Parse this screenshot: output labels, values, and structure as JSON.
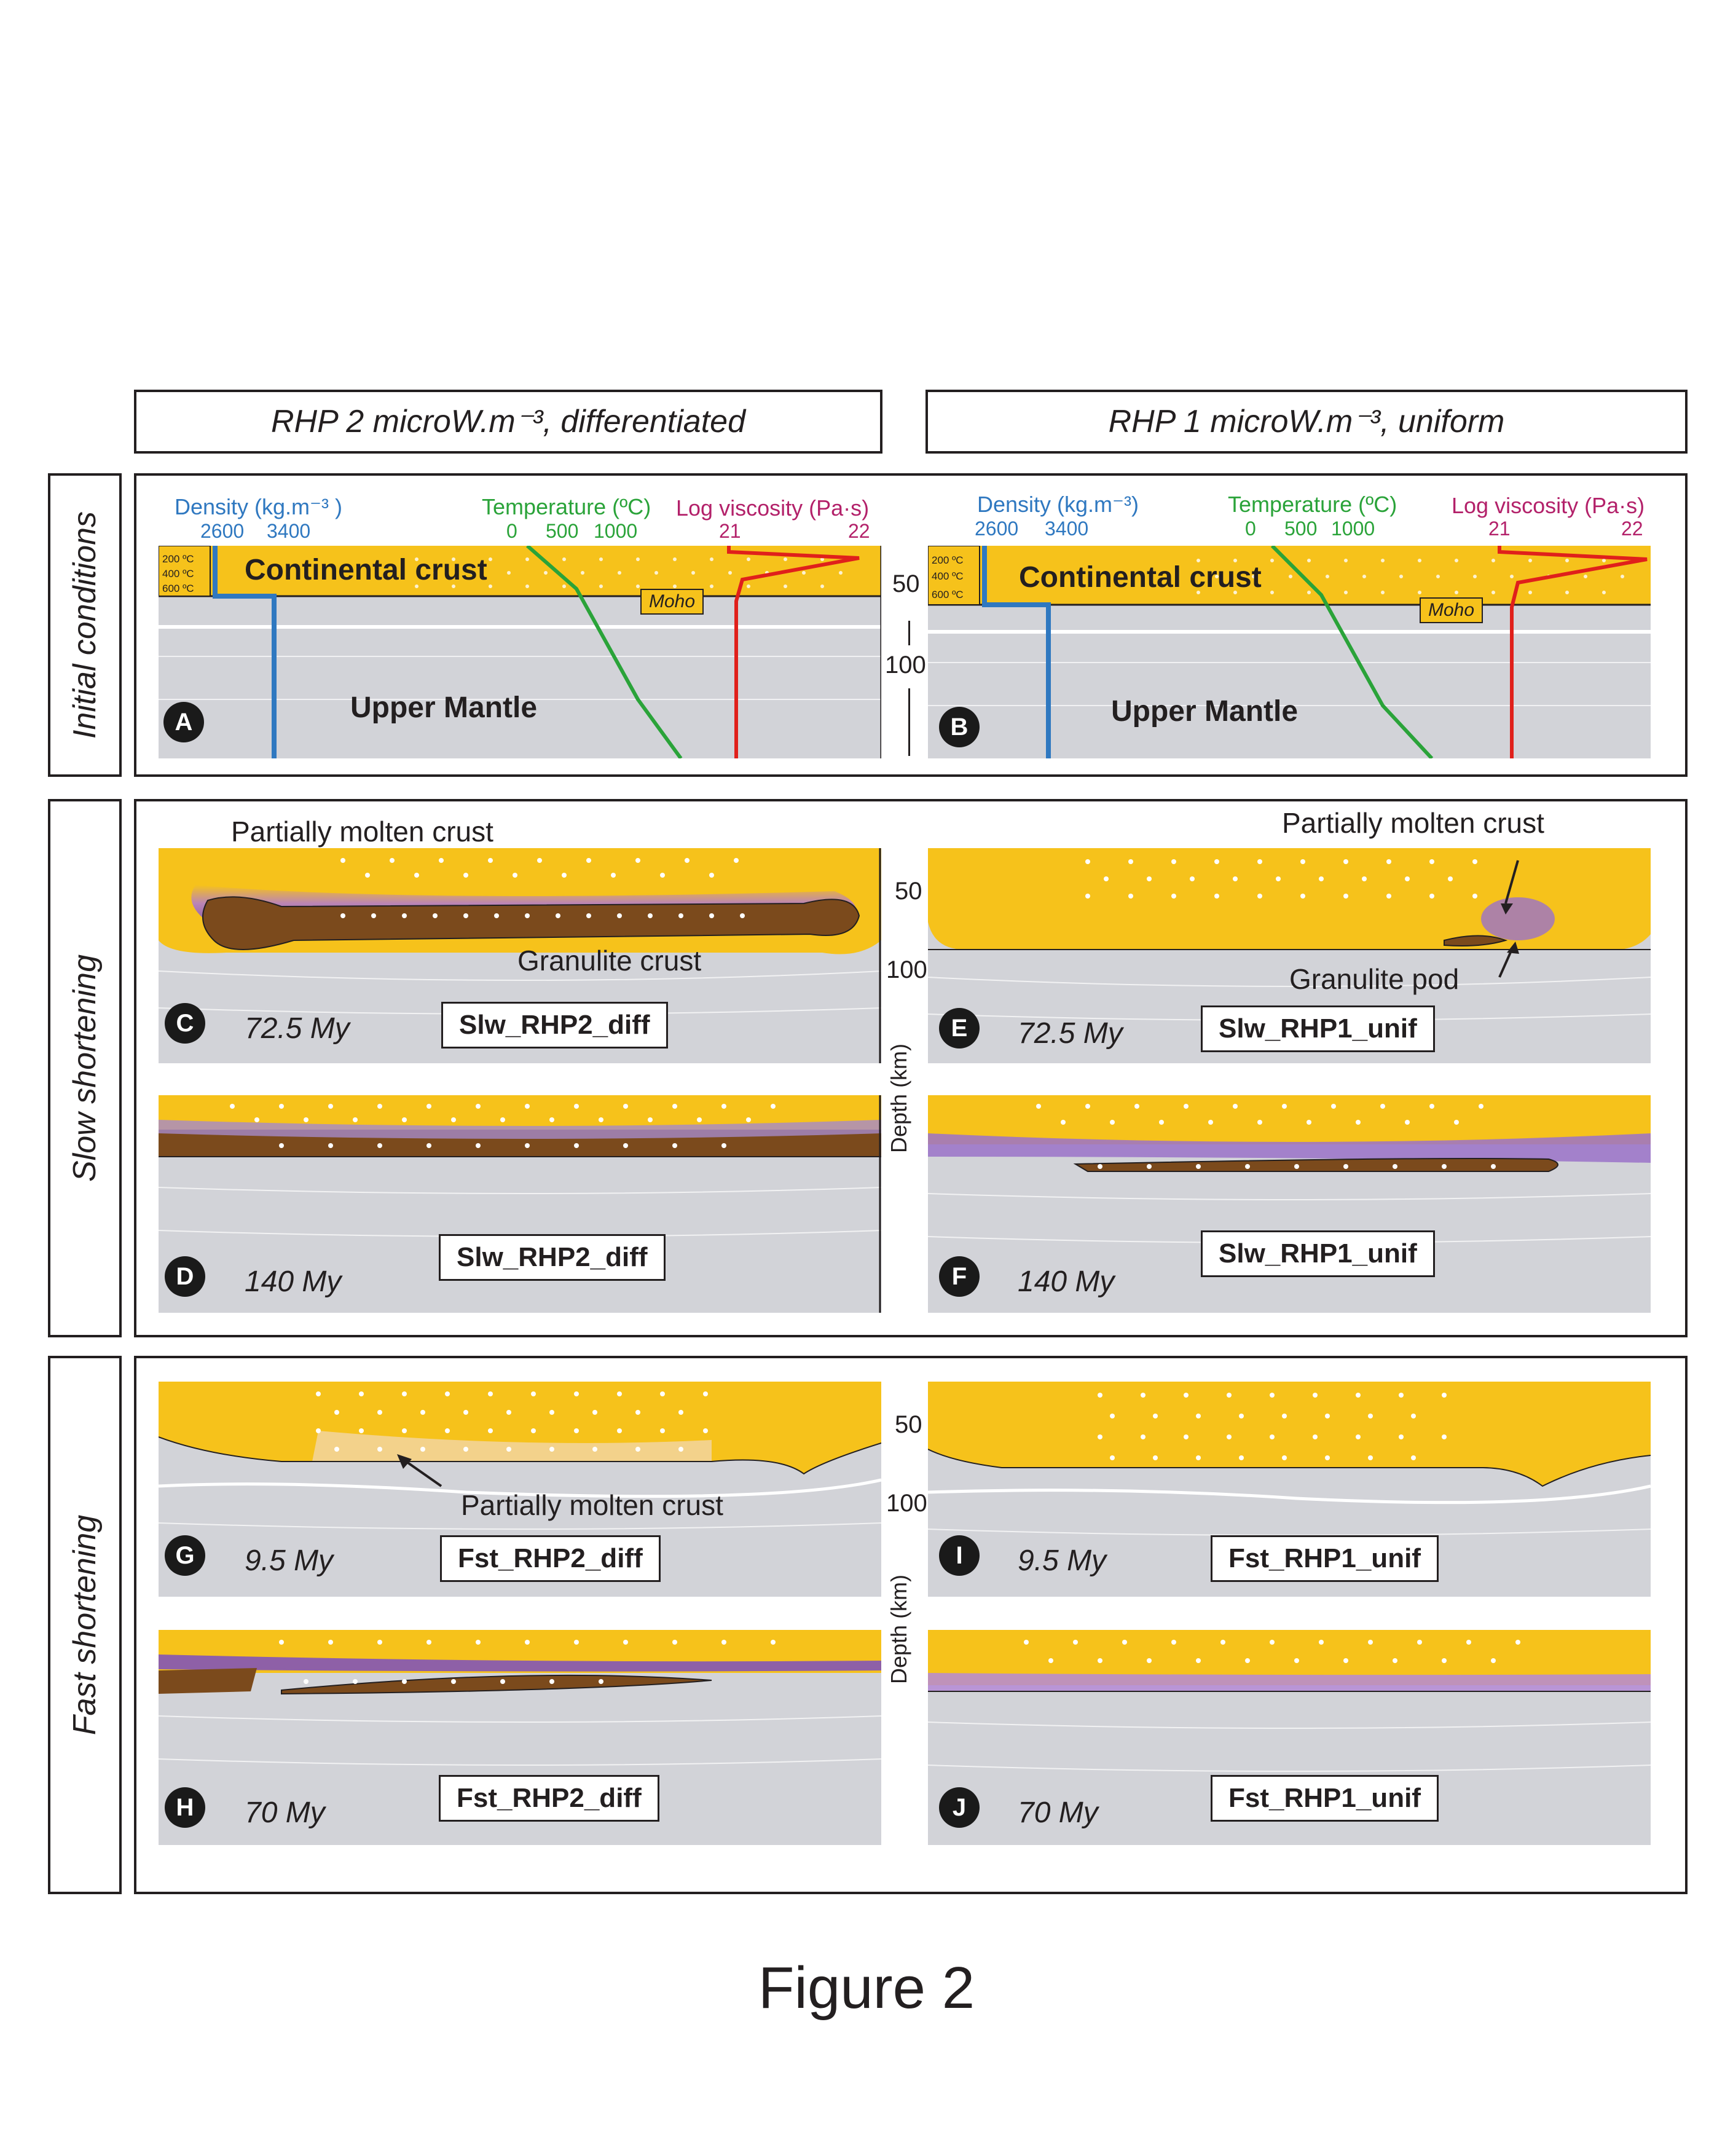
{
  "headers": {
    "left": "RHP 2 microW.m⁻³, differentiated",
    "right": "RHP 1 microW.m⁻³, uniform"
  },
  "rows": {
    "initial": "Initial conditions",
    "slow": "Slow shortening",
    "fast": "Fast shortening"
  },
  "profiles": {
    "density_title": "Density (kg.m⁻³ )",
    "density_title_b": "Density (kg.m⁻³)",
    "density_ticks": [
      "2600",
      "3400"
    ],
    "temperature_title": "Temperature (ºC)",
    "temperature_ticks": [
      "0",
      "500",
      "1000"
    ],
    "viscosity_title": "Log viscosity (Pa·s)",
    "viscosity_ticks": [
      "21",
      "22"
    ],
    "isotherms": [
      "200 ºC",
      "400 ºC",
      "600 ºC"
    ],
    "continental_crust": "Continental crust",
    "upper_mantle": "Upper Mantle",
    "moho": "Moho"
  },
  "depth_axis": {
    "ticks": [
      "50",
      "100"
    ],
    "title": "Depth (km)"
  },
  "panels": {
    "A": {
      "letter": "A"
    },
    "B": {
      "letter": "B"
    },
    "C": {
      "letter": "C",
      "time": "72.5 My",
      "tag": "Slw_RHP2_diff"
    },
    "D": {
      "letter": "D",
      "time": "140 My",
      "tag": "Slw_RHP2_diff"
    },
    "E": {
      "letter": "E",
      "time": "72.5 My",
      "tag": "Slw_RHP1_unif"
    },
    "F": {
      "letter": "F",
      "time": "140 My",
      "tag": "Slw_RHP1_unif"
    },
    "G": {
      "letter": "G",
      "time": "9.5 My",
      "tag": "Fst_RHP2_diff"
    },
    "H": {
      "letter": "H",
      "time": "70 My",
      "tag": "Fst_RHP2_diff"
    },
    "I": {
      "letter": "I",
      "time": "9.5 My",
      "tag": "Fst_RHP1_unif"
    },
    "J": {
      "letter": "J",
      "time": "70 My",
      "tag": "Fst_RHP1_unif"
    }
  },
  "annotations": {
    "partially_molten": "Partially molten crust",
    "granulite_crust": "Granulite crust",
    "granulite_pod": "Granulite pod"
  },
  "colors": {
    "crust": "#f6c21b",
    "mantle": "#d2d3d8",
    "granulite": "#7b4a1c",
    "melt": "#9b72c9",
    "density": "#2f78c0",
    "temperature": "#2aa339",
    "viscosity": "#e0201b"
  },
  "caption": "Figure 2"
}
